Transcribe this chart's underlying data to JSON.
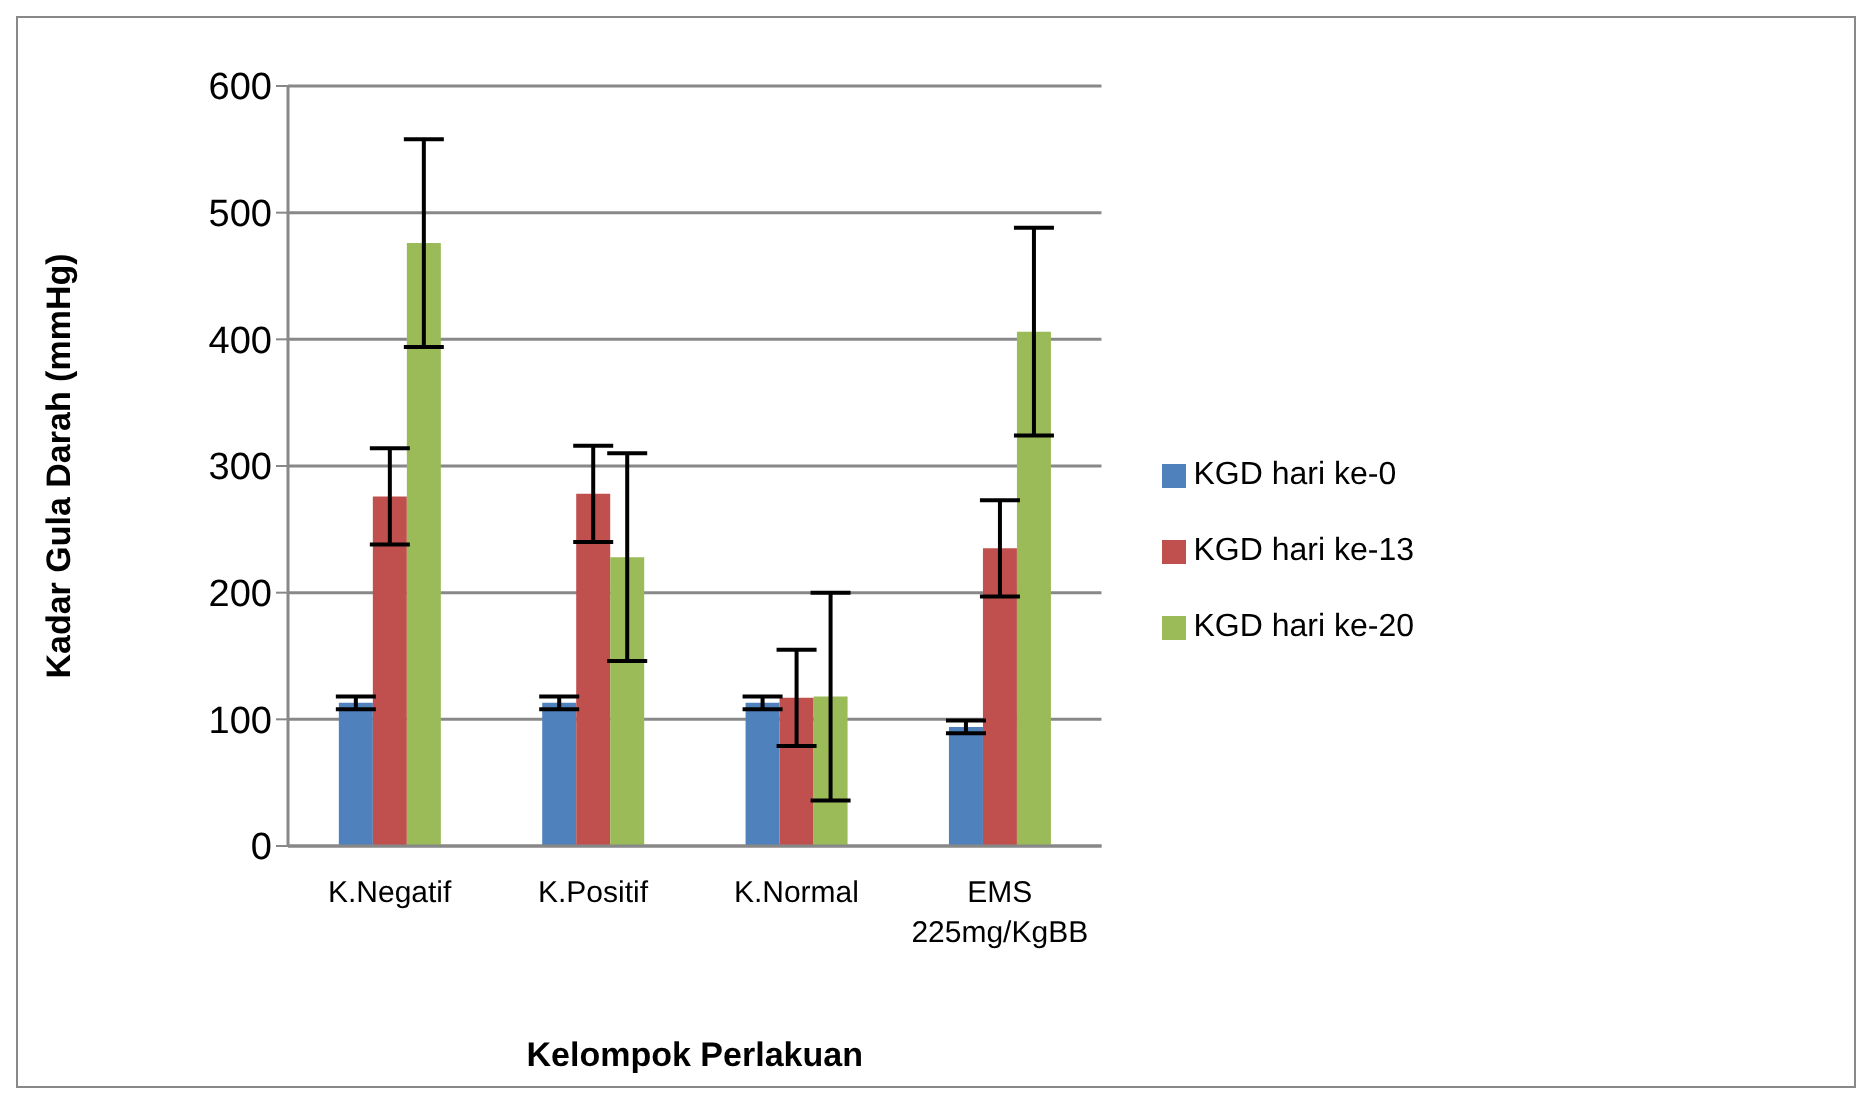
{
  "chart_data": {
    "type": "bar",
    "xlabel": "Kelompok Perlakuan",
    "ylabel": "Kadar Gula Darah (mmHg)",
    "categories": [
      "K.Negatif",
      "K.Positif",
      "K.Normal",
      "EMS 225mg/KgBB"
    ],
    "series": [
      {
        "name": "KGD hari ke-0",
        "color": "#4f81bd",
        "values": [
          113,
          113,
          113,
          94
        ],
        "errors": [
          5,
          5,
          5,
          5
        ]
      },
      {
        "name": "KGD hari ke-13",
        "color": "#c0504d",
        "values": [
          276,
          278,
          117,
          235
        ],
        "errors": [
          38,
          38,
          38,
          38
        ]
      },
      {
        "name": "KGD hari ke-20",
        "color": "#9bbb59",
        "values": [
          476,
          228,
          118,
          406
        ],
        "errors": [
          82,
          82,
          82,
          82
        ]
      }
    ],
    "ylim": [
      0,
      600
    ],
    "yticks": [
      0,
      100,
      200,
      300,
      400,
      500,
      600
    ],
    "grid": "y",
    "legend": "right"
  }
}
